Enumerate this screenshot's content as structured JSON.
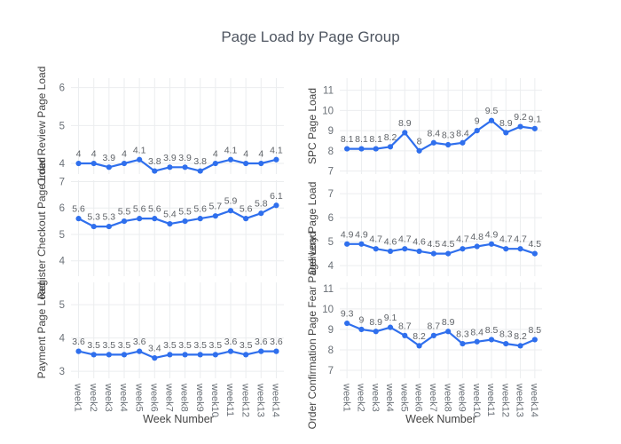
{
  "title": "Page Load by Page Group",
  "colors": {
    "line": "#2f6fed",
    "marker": "#2f6fed",
    "grid": "#ebedef",
    "tick_label": "#6a7077",
    "value_label": "#5f6368",
    "axis_title": "#444444",
    "figure_title": "#4e5560",
    "background": "#ffffff"
  },
  "chart_data": {
    "type": "line",
    "title": "Page Load by Page Group",
    "xlabel": "Week Number",
    "grid": true,
    "legend": "none",
    "categories": [
      "week1",
      "week2",
      "week3",
      "week4",
      "week5",
      "week6",
      "week7",
      "week8",
      "week9",
      "week10",
      "week11",
      "week12",
      "week13",
      "week14"
    ],
    "subplots": [
      {
        "name": "Order Review Page Load",
        "slug": "order-review",
        "col": 0,
        "row": 0,
        "values": [
          4,
          4,
          3.9,
          4,
          4.1,
          3.8,
          3.9,
          3.9,
          3.8,
          4,
          4.1,
          4,
          4,
          4.1
        ],
        "yticks": [
          4,
          5,
          6
        ],
        "ylim": [
          3.72,
          6.25
        ]
      },
      {
        "name": "Register Checkout Page Load",
        "slug": "register-checkout",
        "col": 0,
        "row": 1,
        "values": [
          5.6,
          5.3,
          5.3,
          5.5,
          5.6,
          5.6,
          5.4,
          5.5,
          5.6,
          5.7,
          5.9,
          5.6,
          5.8,
          6.1
        ],
        "yticks": [
          4,
          5,
          6,
          7
        ],
        "ylim": [
          3.42,
          7.05
        ]
      },
      {
        "name": "Payment Page Load",
        "slug": "payment",
        "col": 0,
        "row": 2,
        "values": [
          3.6,
          3.5,
          3.5,
          3.5,
          3.6,
          3.4,
          3.5,
          3.5,
          3.5,
          3.5,
          3.6,
          3.5,
          3.6,
          3.6
        ],
        "yticks": [
          3,
          4,
          5
        ],
        "ylim": [
          2.79,
          5.67
        ]
      },
      {
        "name": "SPC Page Load",
        "slug": "spc",
        "col": 1,
        "row": 0,
        "values": [
          8.1,
          8.1,
          8.1,
          8.2,
          8.9,
          8,
          8.4,
          8.3,
          8.4,
          9,
          9.5,
          8.9,
          9.2,
          9.1
        ],
        "yticks": [
          7,
          8,
          9,
          10,
          11
        ],
        "ylim": [
          6.85,
          11.6
        ]
      },
      {
        "name": "Delivery Page Load",
        "slug": "delivery",
        "col": 1,
        "row": 1,
        "values": [
          4.9,
          4.9,
          4.7,
          4.6,
          4.7,
          4.6,
          4.5,
          4.5,
          4.7,
          4.8,
          4.9,
          4.7,
          4.7,
          4.5
        ],
        "yticks": [
          4,
          5,
          6,
          7
        ],
        "ylim": [
          3.56,
          7.56
        ]
      },
      {
        "name": "Order Confirmation Page Fear Page Load",
        "slug": "order-confirmation",
        "col": 1,
        "row": 2,
        "values": [
          9.3,
          9,
          8.9,
          9.1,
          8.7,
          8.2,
          8.7,
          8.9,
          8.3,
          8.4,
          8.5,
          8.3,
          8.2,
          8.5
        ],
        "yticks": [
          7,
          8,
          9,
          10,
          11
        ],
        "ylim": [
          6.61,
          11.3
        ]
      }
    ]
  }
}
